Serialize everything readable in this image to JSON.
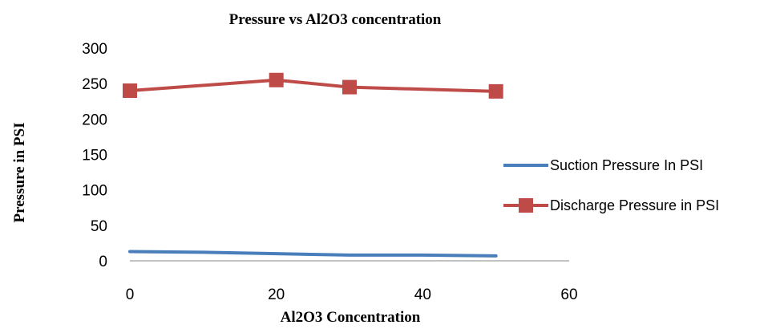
{
  "chart_data": {
    "type": "line",
    "title": "Pressure vs Al2O3 concentration",
    "xlabel": "Al2O3 Concentration",
    "ylabel": "Pressure in PSI",
    "xlim": [
      0,
      60
    ],
    "ylim": [
      0,
      300
    ],
    "xticks": [
      0,
      20,
      40,
      60
    ],
    "yticks": [
      0,
      50,
      100,
      150,
      200,
      250,
      300
    ],
    "grid": false,
    "legend_position": "right",
    "series": [
      {
        "name": "Suction Pressure In PSI",
        "color": "#4a7ebb",
        "marker": "none",
        "x": [
          0,
          10,
          20,
          30,
          40,
          50
        ],
        "y": [
          13,
          12,
          10,
          8,
          8,
          7
        ]
      },
      {
        "name": "Discharge Pressure in PSI",
        "color": "#be4b48",
        "marker": "square",
        "x": [
          0,
          20,
          30,
          50
        ],
        "y": [
          240,
          255,
          245,
          239
        ]
      }
    ]
  }
}
